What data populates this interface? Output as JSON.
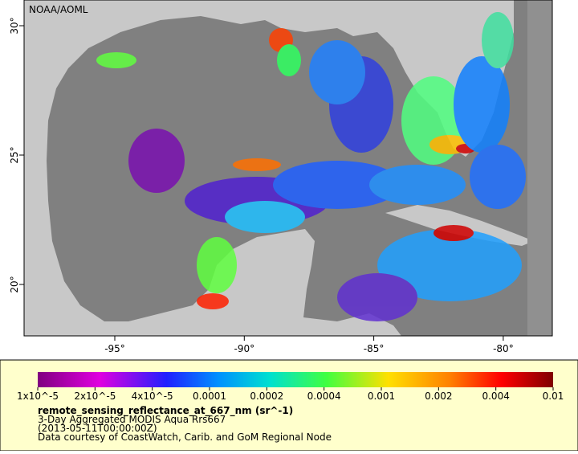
{
  "map": {
    "credit": "NOAA/AOML",
    "lat_ticks": [
      "30°",
      "25°",
      "20°"
    ],
    "lon_ticks": [
      "-95°",
      "-90°",
      "-85°",
      "-80°"
    ]
  },
  "legend": {
    "ticks": [
      "1x10^-5",
      "2x10^-5",
      "4x10^-5",
      "0.0001",
      "0.0002",
      "0.0004",
      "0.001",
      "0.002",
      "0.004",
      "0.01"
    ],
    "title": "remote_sensing_reflectance_at_667_nm (sr^-1)",
    "lines": [
      "3-Day Aggregated MODIS Aqua Rrs667",
      "(2013-05-11T00:00:00Z)",
      "Data courtesy of CoastWatch, Carib. and GoM Regional Node"
    ]
  }
}
